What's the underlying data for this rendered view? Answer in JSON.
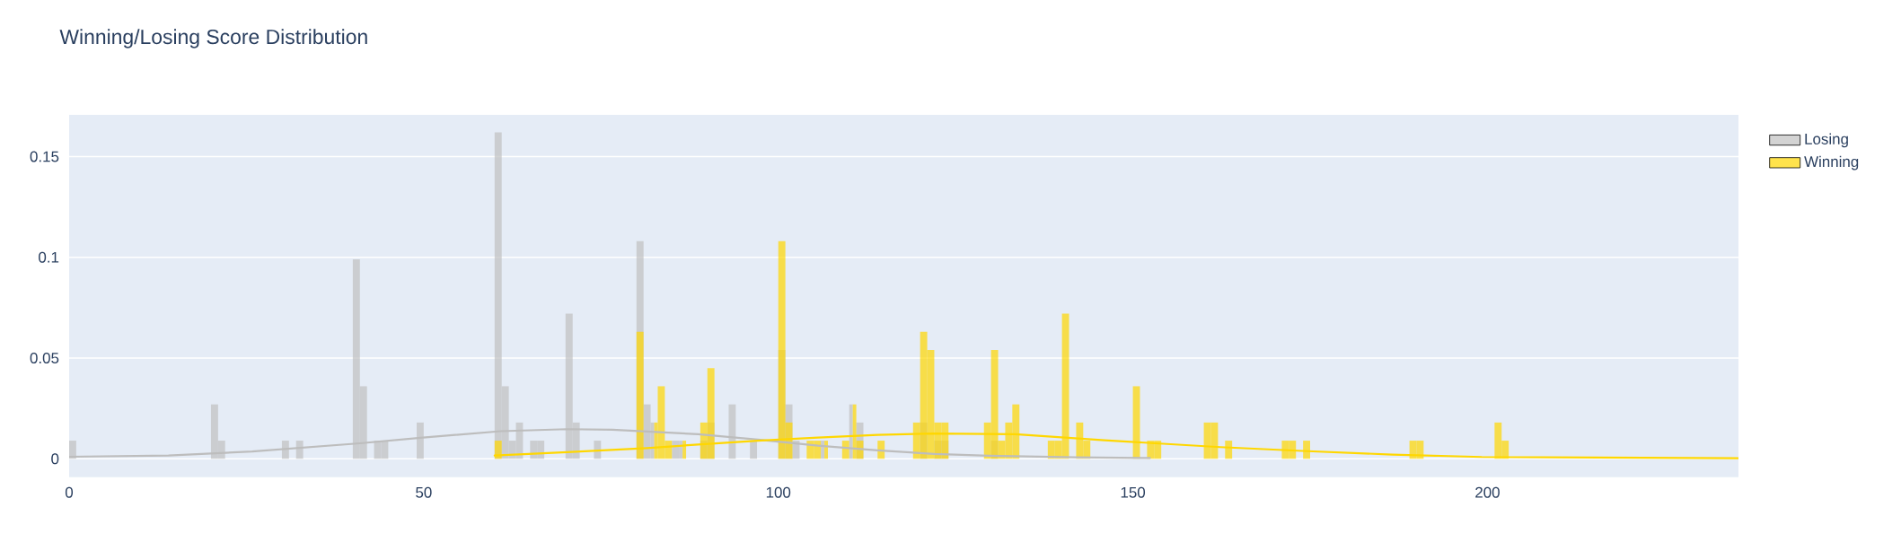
{
  "chart_data": {
    "type": "histogram",
    "title": "Winning/Losing Score Distribution",
    "xlim": [
      0,
      235.4
    ],
    "ylim": [
      -0.0091,
      0.1707
    ],
    "xticks": [
      0,
      50,
      100,
      150,
      200
    ],
    "yticks": [
      0,
      0.05,
      0.1,
      0.15
    ],
    "grid": "y",
    "legend": "top right",
    "series": [
      {
        "name": "Losing",
        "color": "#c0c0c0",
        "bins": [
          0,
          1,
          20,
          21,
          22,
          30,
          31,
          32,
          33,
          40,
          41,
          42,
          43,
          44,
          45,
          49,
          50,
          60,
          61,
          62,
          63,
          64,
          65,
          66,
          67,
          70,
          71,
          72,
          74,
          75,
          80,
          81,
          82,
          83,
          85,
          86,
          87,
          89,
          90,
          91,
          93,
          94,
          96,
          97,
          100,
          101,
          102,
          103,
          106,
          107,
          110,
          111,
          112,
          120,
          121,
          122,
          123,
          124,
          130,
          131
        ],
        "values": [
          0.009,
          0,
          0.027,
          0.009,
          0,
          0.009,
          0,
          0.009,
          0,
          0.099,
          0.036,
          0,
          0.009,
          0.009,
          0,
          0.018,
          0,
          0.162,
          0.036,
          0.009,
          0.018,
          0,
          0.009,
          0.009,
          0,
          0.072,
          0.018,
          0,
          0.009,
          0,
          0.108,
          0.027,
          0.018,
          0,
          0.009,
          0.009,
          0,
          0.009,
          0.018,
          0,
          0.027,
          0,
          0.009,
          0,
          0.054,
          0.027,
          0.009,
          0,
          0.009,
          0,
          0.027,
          0.018,
          0,
          0.018,
          0,
          0.009,
          0.009,
          0,
          0.009
        ]
      },
      {
        "name": "Winning",
        "color": "#ffd700",
        "bins": [
          60,
          61,
          80,
          81,
          82,
          83,
          84,
          85,
          86,
          87,
          89,
          90,
          91,
          100,
          101,
          102,
          104,
          105,
          106,
          107,
          109,
          110,
          111,
          112,
          114,
          115,
          119,
          120,
          121,
          122,
          123,
          124,
          129,
          130,
          131,
          132,
          133,
          134,
          138,
          139,
          140,
          141,
          142,
          143,
          144,
          150,
          151,
          152,
          153,
          154,
          160,
          161,
          162,
          163,
          164,
          171,
          172,
          173,
          174,
          175,
          189,
          190,
          191,
          201,
          202,
          203
        ],
        "values": [
          0.009,
          0,
          0.063,
          0,
          0.018,
          0.036,
          0.009,
          0,
          0.009,
          0,
          0.018,
          0.045,
          0,
          0.108,
          0.018,
          0,
          0.009,
          0.009,
          0.009,
          0,
          0.009,
          0.027,
          0.009,
          0,
          0.009,
          0,
          0.018,
          0.063,
          0.054,
          0.018,
          0.018,
          0,
          0.018,
          0.054,
          0.009,
          0.018,
          0.027,
          0,
          0.009,
          0.009,
          0.072,
          0,
          0.018,
          0.009,
          0,
          0.036,
          0,
          0.009,
          0.009,
          0,
          0.018,
          0.018,
          0,
          0.009,
          0,
          0.009,
          0.009,
          0,
          0.009,
          0,
          0.009,
          0.009,
          0,
          0.018,
          0.009
        ]
      },
      {
        "type": "line",
        "color": "#bdbdbd",
        "x": [
          0,
          14,
          25.8,
          41,
          49.9,
          60.9,
          70.2,
          76.6,
          81.5,
          88.7,
          97.1,
          105.6,
          114,
          122,
          129.7,
          141.9,
          152.4
        ],
        "values": [
          0.001,
          0.0016,
          0.0036,
          0.0077,
          0.0105,
          0.0137,
          0.0147,
          0.0144,
          0.0135,
          0.0122,
          0.0095,
          0.0065,
          0.0042,
          0.0024,
          0.0015,
          0.0007,
          0.0004
        ]
      },
      {
        "type": "line",
        "color": "#ffd700",
        "x": [
          60,
          70.2,
          81.5,
          88.7,
          97.1,
          105.6,
          114,
          122,
          133.4,
          146,
          162.3,
          173.9,
          186.6,
          199.2,
          235.4
        ],
        "values": [
          0.0016,
          0.0033,
          0.0053,
          0.0071,
          0.009,
          0.0105,
          0.0119,
          0.0125,
          0.0122,
          0.0092,
          0.0058,
          0.0039,
          0.0021,
          0.0009,
          0.0003
        ]
      }
    ]
  }
}
